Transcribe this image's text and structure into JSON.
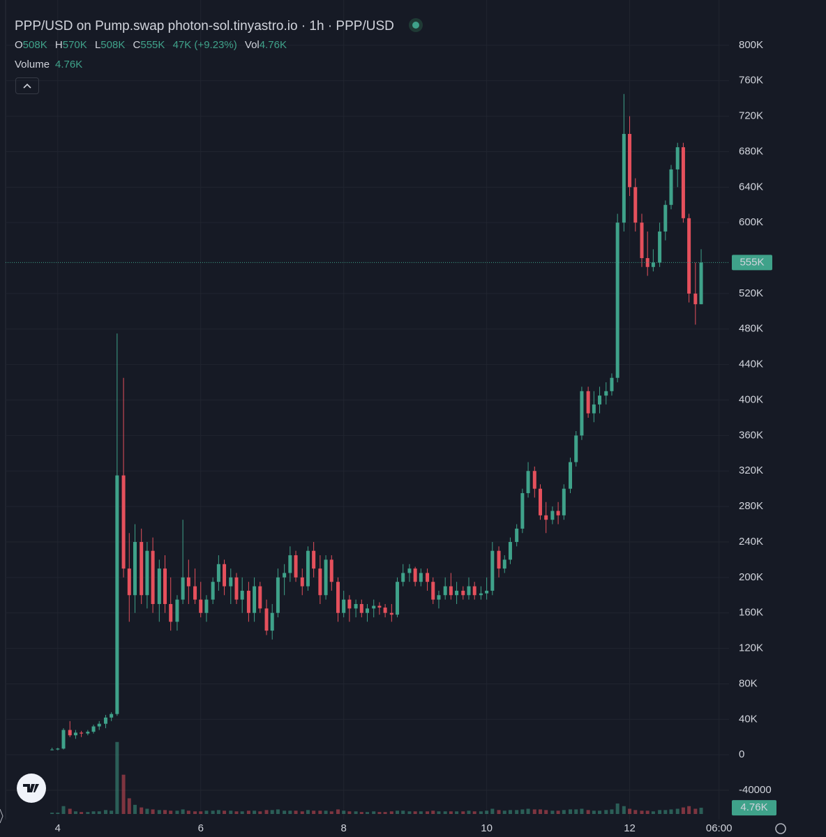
{
  "chart_data": {
    "type": "candlestick",
    "title": "PPP/USD on Pump.swap photon-sol.tinyastro.io · 1h · PPP/USD",
    "legend": [
      {
        "label": "O",
        "value": "508K"
      },
      {
        "label": "H",
        "value": "570K"
      },
      {
        "label": "L",
        "value": "508K"
      },
      {
        "label": "C",
        "value": "555K"
      }
    ],
    "change": "47K (+9.23%)",
    "volume_legend": {
      "label": "Vol",
      "value": "4.76K"
    },
    "volume_title": "Volume",
    "volume_value": "4.76K",
    "price_label": "555K",
    "volume_label": "4.76K",
    "up_color": "#3fa28a",
    "down_color": "#e5505c",
    "grid": true,
    "xlim": [
      3.27,
      13.39
    ],
    "xticks": [
      4,
      6,
      8,
      10,
      12,
      {
        "value": 13.25,
        "label": "06:00"
      }
    ],
    "ylim": [
      -73000,
      851000
    ],
    "yticks": [
      {
        "value": 800000,
        "label": "800K"
      },
      {
        "value": 760000,
        "label": "760K"
      },
      {
        "value": 720000,
        "label": "720K"
      },
      {
        "value": 680000,
        "label": "680K"
      },
      {
        "value": 640000,
        "label": "640K"
      },
      {
        "value": 600000,
        "label": "600K"
      },
      {
        "value": 520000,
        "label": "520K"
      },
      {
        "value": 480000,
        "label": "480K"
      },
      {
        "value": 440000,
        "label": "440K"
      },
      {
        "value": 400000,
        "label": "400K"
      },
      {
        "value": 360000,
        "label": "360K"
      },
      {
        "value": 320000,
        "label": "320K"
      },
      {
        "value": 280000,
        "label": "280K"
      },
      {
        "value": 240000,
        "label": "240K"
      },
      {
        "value": 200000,
        "label": "200K"
      },
      {
        "value": 160000,
        "label": "160K"
      },
      {
        "value": 120000,
        "label": "120K"
      },
      {
        "value": 80000,
        "label": "80K"
      },
      {
        "value": 40000,
        "label": "40K"
      },
      0,
      -40000
    ],
    "volume_lim": [
      0,
      57000
    ],
    "x": [
      3.92,
      4,
      4.08,
      4.17,
      4.25,
      4.33,
      4.42,
      4.5,
      4.58,
      4.67,
      4.75,
      4.83,
      4.92,
      5,
      5.08,
      5.17,
      5.25,
      5.33,
      5.42,
      5.5,
      5.58,
      5.67,
      5.75,
      5.83,
      5.92,
      6,
      6.08,
      6.17,
      6.25,
      6.33,
      6.42,
      6.5,
      6.58,
      6.67,
      6.75,
      6.83,
      6.92,
      7,
      7.08,
      7.17,
      7.25,
      7.33,
      7.42,
      7.5,
      7.58,
      7.67,
      7.75,
      7.83,
      7.92,
      8,
      8.08,
      8.17,
      8.25,
      8.33,
      8.42,
      8.5,
      8.58,
      8.67,
      8.75,
      8.83,
      8.92,
      9,
      9.08,
      9.17,
      9.25,
      9.33,
      9.42,
      9.5,
      9.58,
      9.67,
      9.75,
      9.83,
      9.92,
      10,
      10.08,
      10.17,
      10.25,
      10.33,
      10.42,
      10.5,
      10.58,
      10.67,
      10.75,
      10.83,
      10.92,
      11,
      11.08,
      11.17,
      11.25,
      11.33,
      11.42,
      11.5,
      11.58,
      11.67,
      11.75,
      11.83,
      11.92,
      12,
      12.08,
      12.17,
      12.25,
      12.33,
      12.42,
      12.5,
      12.58,
      12.67,
      12.75,
      12.83,
      12.92,
      13
    ],
    "open": [
      6000,
      6000,
      7000,
      28000,
      22000,
      25000,
      24000,
      26000,
      32000,
      35000,
      42000,
      46000,
      315000,
      210000,
      180000,
      240000,
      180000,
      230000,
      170000,
      210000,
      170000,
      150000,
      175000,
      200000,
      190000,
      175000,
      160000,
      175000,
      195000,
      215000,
      190000,
      200000,
      175000,
      185000,
      160000,
      190000,
      165000,
      140000,
      160000,
      200000,
      205000,
      225000,
      200000,
      190000,
      230000,
      210000,
      180000,
      220000,
      195000,
      160000,
      175000,
      165000,
      170000,
      160000,
      165000,
      168000,
      166000,
      160000,
      158000,
      195000,
      205000,
      210000,
      195000,
      205000,
      195000,
      175000,
      180000,
      190000,
      180000,
      185000,
      180000,
      190000,
      180000,
      182000,
      185000,
      230000,
      210000,
      220000,
      240000,
      255000,
      295000,
      320000,
      300000,
      270000,
      265000,
      275000,
      270000,
      300000,
      330000,
      360000,
      410000,
      385000,
      395000,
      405000,
      410000,
      425000,
      600000,
      700000,
      640000,
      600000,
      560000,
      550000,
      555000,
      590000,
      620000,
      660000,
      685000,
      605000,
      520000,
      508000
    ],
    "high": [
      8000,
      8000,
      30000,
      38000,
      28000,
      27000,
      28000,
      34000,
      38000,
      45000,
      48000,
      475000,
      425000,
      250000,
      260000,
      255000,
      240000,
      245000,
      220000,
      225000,
      200000,
      180000,
      265000,
      220000,
      210000,
      195000,
      180000,
      200000,
      225000,
      220000,
      210000,
      205000,
      200000,
      195000,
      200000,
      195000,
      175000,
      170000,
      210000,
      215000,
      235000,
      230000,
      210000,
      235000,
      240000,
      225000,
      225000,
      225000,
      200000,
      185000,
      180000,
      175000,
      175000,
      170000,
      175000,
      172000,
      170000,
      170000,
      200000,
      215000,
      215000,
      212000,
      210000,
      210000,
      200000,
      185000,
      200000,
      205000,
      195000,
      190000,
      200000,
      195000,
      190000,
      200000,
      240000,
      235000,
      225000,
      245000,
      260000,
      300000,
      330000,
      325000,
      305000,
      285000,
      280000,
      285000,
      305000,
      335000,
      365000,
      415000,
      415000,
      410000,
      415000,
      420000,
      430000,
      610000,
      745000,
      720000,
      650000,
      610000,
      590000,
      570000,
      600000,
      625000,
      665000,
      690000,
      690000,
      610000,
      555000,
      570000
    ],
    "low": [
      5000,
      5000,
      6000,
      20000,
      18000,
      20000,
      22000,
      24000,
      28000,
      30000,
      38000,
      44000,
      200000,
      150000,
      160000,
      170000,
      165000,
      160000,
      150000,
      160000,
      140000,
      140000,
      170000,
      170000,
      170000,
      155000,
      150000,
      170000,
      185000,
      180000,
      170000,
      170000,
      160000,
      150000,
      150000,
      160000,
      135000,
      130000,
      155000,
      180000,
      195000,
      195000,
      180000,
      185000,
      200000,
      170000,
      175000,
      185000,
      150000,
      155000,
      150000,
      155000,
      155000,
      150000,
      155000,
      158000,
      155000,
      150000,
      155000,
      190000,
      195000,
      190000,
      190000,
      185000,
      170000,
      165000,
      175000,
      175000,
      170000,
      175000,
      175000,
      175000,
      175000,
      175000,
      180000,
      200000,
      205000,
      215000,
      235000,
      250000,
      290000,
      290000,
      265000,
      250000,
      260000,
      260000,
      265000,
      295000,
      325000,
      355000,
      380000,
      375000,
      385000,
      395000,
      405000,
      420000,
      590000,
      630000,
      590000,
      550000,
      540000,
      545000,
      550000,
      580000,
      615000,
      640000,
      600000,
      510000,
      485000,
      508000
    ],
    "close": [
      6000,
      7000,
      28000,
      22000,
      25000,
      24000,
      26000,
      32000,
      35000,
      42000,
      46000,
      315000,
      210000,
      180000,
      240000,
      180000,
      230000,
      170000,
      210000,
      170000,
      150000,
      175000,
      200000,
      190000,
      175000,
      160000,
      175000,
      195000,
      215000,
      190000,
      200000,
      175000,
      185000,
      160000,
      190000,
      165000,
      140000,
      160000,
      200000,
      205000,
      225000,
      200000,
      190000,
      230000,
      210000,
      180000,
      220000,
      195000,
      160000,
      175000,
      165000,
      170000,
      160000,
      165000,
      168000,
      166000,
      160000,
      158000,
      195000,
      205000,
      210000,
      195000,
      205000,
      195000,
      175000,
      180000,
      190000,
      180000,
      185000,
      180000,
      190000,
      180000,
      182000,
      185000,
      230000,
      210000,
      220000,
      240000,
      255000,
      295000,
      320000,
      300000,
      270000,
      265000,
      275000,
      270000,
      300000,
      330000,
      360000,
      410000,
      385000,
      395000,
      405000,
      410000,
      425000,
      600000,
      700000,
      640000,
      600000,
      560000,
      550000,
      555000,
      590000,
      620000,
      660000,
      685000,
      605000,
      520000,
      508000,
      555000
    ],
    "volume": [
      1000,
      1000,
      6000,
      4000,
      2000,
      1500,
      1500,
      2000,
      2000,
      3000,
      2500,
      55000,
      30000,
      12000,
      7000,
      5000,
      4000,
      3500,
      3000,
      3000,
      2500,
      2500,
      3500,
      2500,
      2000,
      2000,
      2500,
      2500,
      3000,
      2500,
      2500,
      2000,
      2000,
      2500,
      2500,
      2000,
      3000,
      3000,
      3500,
      2500,
      2500,
      2500,
      2000,
      3000,
      2500,
      2500,
      2500,
      2000,
      3500,
      2500,
      2000,
      2000,
      1500,
      1500,
      2000,
      1500,
      1500,
      2000,
      2500,
      2500,
      2000,
      2000,
      2000,
      2000,
      2500,
      2000,
      2000,
      2000,
      2000,
      2000,
      2500,
      2000,
      2000,
      2500,
      4000,
      3000,
      2500,
      3000,
      3000,
      3500,
      4000,
      3500,
      3500,
      3000,
      2500,
      2500,
      3000,
      3500,
      3500,
      4000,
      3000,
      2500,
      2500,
      3000,
      3500,
      8000,
      6000,
      4000,
      3000,
      2500,
      2500,
      2000,
      3000,
      3000,
      3500,
      4000,
      5000,
      6000,
      4000,
      4760
    ]
  }
}
